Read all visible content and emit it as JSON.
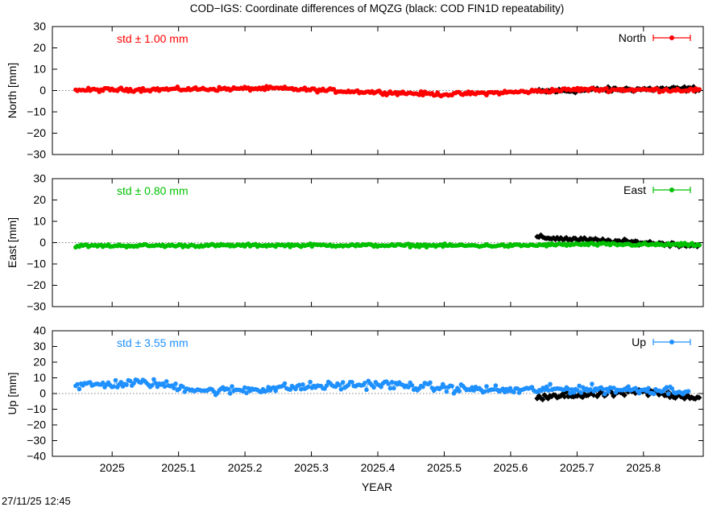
{
  "title": "COD−IGS: Coordinate differences of MQZG (black: COD FIN1D repeatability)",
  "timestamp": "27/11/25 12:45",
  "chart_data": {
    "type": "line",
    "xlabel": "YEAR",
    "xlim": [
      2024.91,
      2025.89
    ],
    "x_ticks": [
      2025,
      2025.1,
      2025.2,
      2025.3,
      2025.4,
      2025.5,
      2025.6,
      2025.7,
      2025.8
    ],
    "x_tick_labels": [
      "2025",
      "2025.1",
      "2025.2",
      "2025.3",
      "2025.4",
      "2025.5",
      "2025.6",
      "2025.7",
      "2025.8"
    ],
    "panels": [
      {
        "id": "north",
        "ylabel": "North [mm]",
        "ylim": [
          -30,
          30
        ],
        "y_ticks": [
          -30,
          -20,
          -10,
          0,
          10,
          20,
          30
        ],
        "y_tick_labels": [
          "−30",
          "−20",
          "−10",
          "0",
          "10",
          "20",
          "30"
        ],
        "legend": "North",
        "std_label": "std ± 1.00 mm",
        "color": "#ff0000",
        "main_x_start": 2024.945,
        "main_x_end": 2025.885,
        "main_profile": [
          [
            2024.945,
            0.2
          ],
          [
            2025.1,
            0.6
          ],
          [
            2025.25,
            1.0
          ],
          [
            2025.3,
            0.3
          ],
          [
            2025.4,
            -0.8
          ],
          [
            2025.5,
            -1.8
          ],
          [
            2025.6,
            -0.8
          ],
          [
            2025.7,
            0.5
          ],
          [
            2025.885,
            0.2
          ]
        ],
        "main_amplitude": 1.3,
        "repeat_x_start": 2025.64,
        "repeat_x_end": 2025.885,
        "repeat_profile": [
          [
            2025.64,
            -0.5
          ],
          [
            2025.75,
            0.5
          ],
          [
            2025.885,
            0.8
          ]
        ],
        "repeat_amplitude": 1.6
      },
      {
        "id": "east",
        "ylabel": "East [mm]",
        "ylim": [
          -30,
          30
        ],
        "y_ticks": [
          -30,
          -20,
          -10,
          0,
          10,
          20,
          30
        ],
        "y_tick_labels": [
          "−30",
          "−20",
          "−10",
          "0",
          "10",
          "20",
          "30"
        ],
        "legend": "East",
        "std_label": "std ± 0.80 mm",
        "color": "#00c000",
        "main_x_start": 2024.945,
        "main_x_end": 2025.885,
        "main_profile": [
          [
            2024.945,
            -1.5
          ],
          [
            2025.3,
            -1.2
          ],
          [
            2025.6,
            -1.4
          ],
          [
            2025.7,
            -0.8
          ],
          [
            2025.885,
            -1.0
          ]
        ],
        "main_amplitude": 1.0,
        "repeat_x_start": 2025.64,
        "repeat_x_end": 2025.885,
        "repeat_profile": [
          [
            2025.64,
            2.5
          ],
          [
            2025.7,
            1.5
          ],
          [
            2025.8,
            0.0
          ],
          [
            2025.885,
            -1.5
          ]
        ],
        "repeat_amplitude": 1.4
      },
      {
        "id": "up",
        "ylabel": "Up [mm]",
        "ylim": [
          -40,
          40
        ],
        "y_ticks": [
          -40,
          -30,
          -20,
          -10,
          0,
          10,
          20,
          30,
          40
        ],
        "y_tick_labels": [
          "−40",
          "−30",
          "−20",
          "−10",
          "0",
          "10",
          "20",
          "30",
          "40"
        ],
        "legend": "Up",
        "std_label": "std ± 3.55 mm",
        "color": "#1e90ff",
        "main_x_start": 2024.945,
        "main_x_end": 2025.87,
        "main_profile": [
          [
            2024.945,
            5.0
          ],
          [
            2025.05,
            7.0
          ],
          [
            2025.15,
            1.5
          ],
          [
            2025.3,
            4.5
          ],
          [
            2025.4,
            6.0
          ],
          [
            2025.5,
            3.5
          ],
          [
            2025.6,
            2.0
          ],
          [
            2025.7,
            3.0
          ],
          [
            2025.87,
            2.0
          ]
        ],
        "main_amplitude": 4.0,
        "repeat_x_start": 2025.64,
        "repeat_x_end": 2025.885,
        "repeat_profile": [
          [
            2025.64,
            -3.0
          ],
          [
            2025.7,
            -1.0
          ],
          [
            2025.8,
            1.0
          ],
          [
            2025.885,
            -2.5
          ]
        ],
        "repeat_amplitude": 3.5
      }
    ]
  }
}
